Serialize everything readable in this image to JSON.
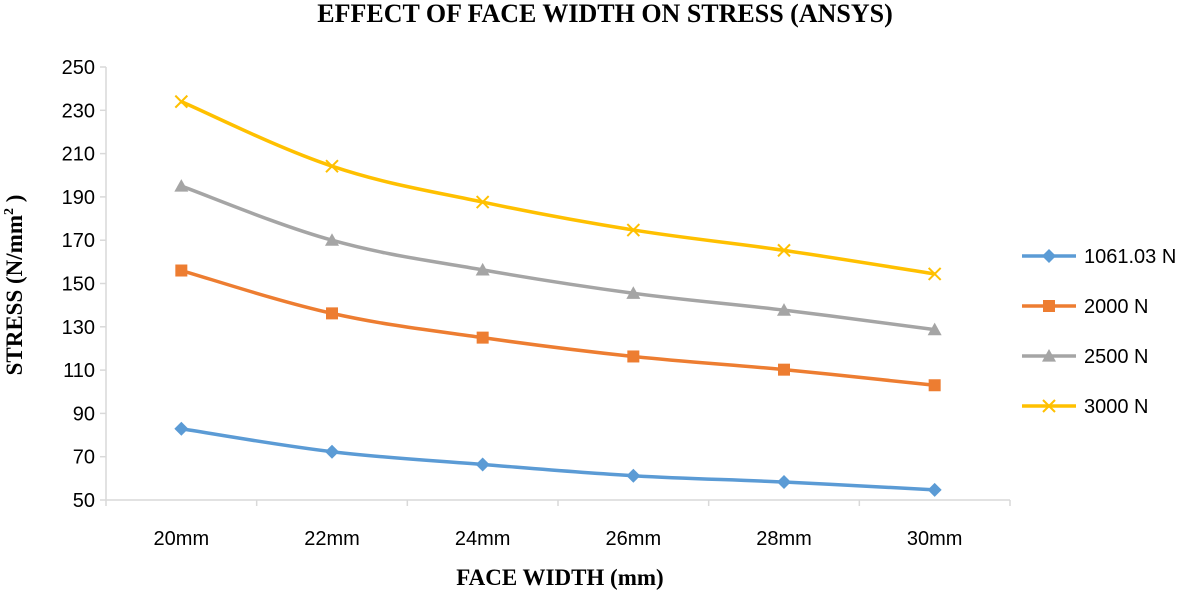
{
  "chart_data": {
    "type": "line",
    "title": "EFFECT OF FACE WIDTH ON STRESS (ANSYS)",
    "xlabel": "FACE WIDTH (mm)",
    "ylabel": "STRESS (N/mm2 )",
    "ylabel_main": "STRESS (N/mm",
    "ylabel_sup": "2",
    "ylabel_tail": " )",
    "categories": [
      "20mm",
      "22mm",
      "24mm",
      "26mm",
      "28mm",
      "30mm"
    ],
    "ylim": [
      50,
      250
    ],
    "yticks": [
      50,
      70,
      90,
      110,
      130,
      150,
      170,
      190,
      210,
      230,
      250
    ],
    "grid": false,
    "legend_position": "right",
    "series": [
      {
        "name": "1061.03 N",
        "color": "#5B9BD5",
        "marker": "diamond",
        "values": [
          82.9,
          72.3,
          66.4,
          61.2,
          58.3,
          54.7
        ]
      },
      {
        "name": "2000 N",
        "color": "#ED7D31",
        "marker": "square",
        "values": [
          156,
          136.2,
          125,
          116.3,
          110.2,
          103
        ]
      },
      {
        "name": "2500 N",
        "color": "#A5A5A5",
        "marker": "triangle",
        "values": [
          195,
          170,
          156.3,
          145.5,
          137.7,
          128.7
        ]
      },
      {
        "name": "3000 N",
        "color": "#FFC000",
        "marker": "x",
        "values": [
          234,
          204.2,
          187.6,
          174.7,
          165.3,
          154.4
        ]
      }
    ]
  }
}
